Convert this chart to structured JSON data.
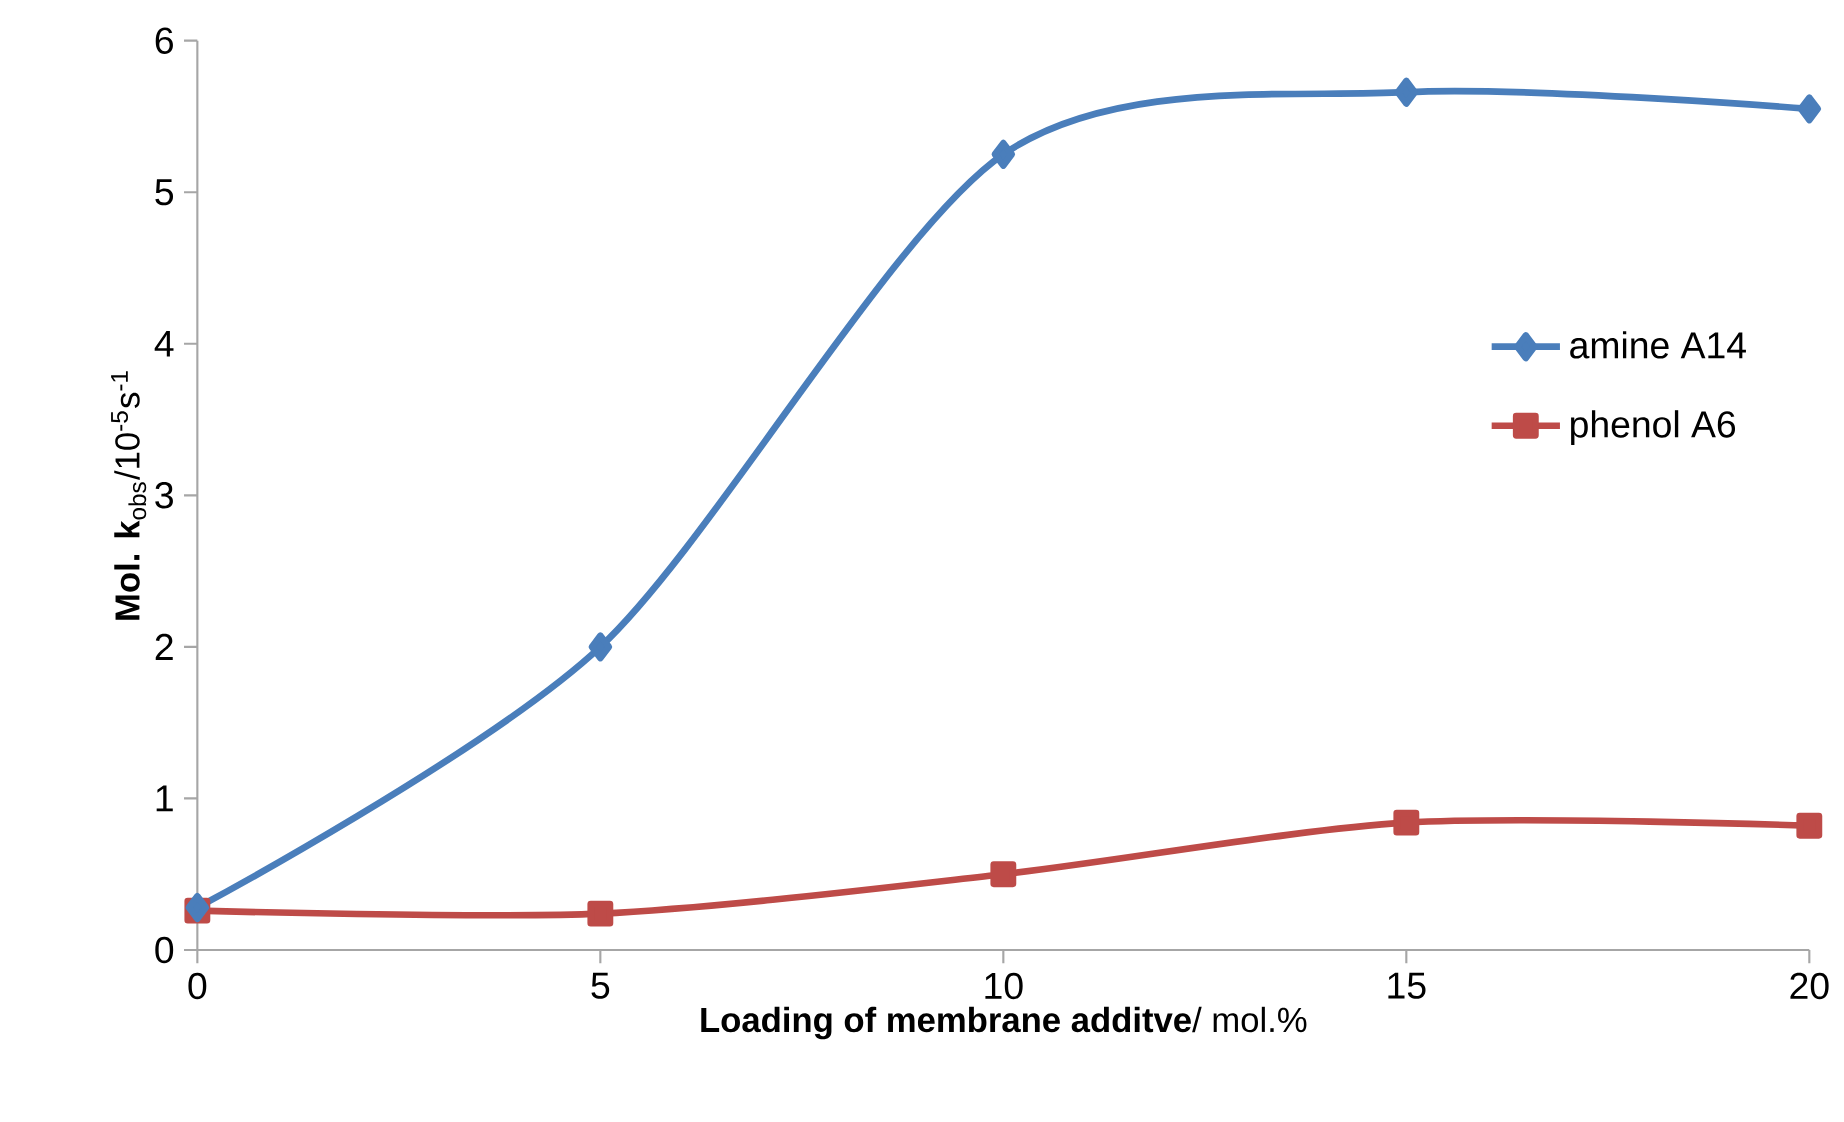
{
  "chart_data": {
    "type": "line",
    "xlabel": "**Loading of membrane additve**/ mol.%",
    "ylabel": "**Mol. k**$_{obs}$/10$^{-5}$s$^{-1}$",
    "x": [
      0,
      5,
      10,
      15,
      20
    ],
    "series": [
      {
        "name": "amine A14",
        "color": "#4a7ebb",
        "marker": "diamond",
        "values": [
          0.28,
          2.0,
          5.25,
          5.66,
          5.55
        ]
      },
      {
        "name": "phenol A6",
        "color": "#be4b48",
        "marker": "square",
        "values": [
          0.26,
          0.24,
          0.5,
          0.84,
          0.82
        ]
      }
    ],
    "xlim": [
      0,
      20
    ],
    "xticks": [
      0,
      5,
      10,
      15,
      20
    ],
    "ylim": [
      0,
      6
    ],
    "yticks": [
      0,
      1,
      2,
      3,
      4,
      5,
      6
    ],
    "grid": false,
    "legend": "right",
    "line_style": "solid"
  }
}
